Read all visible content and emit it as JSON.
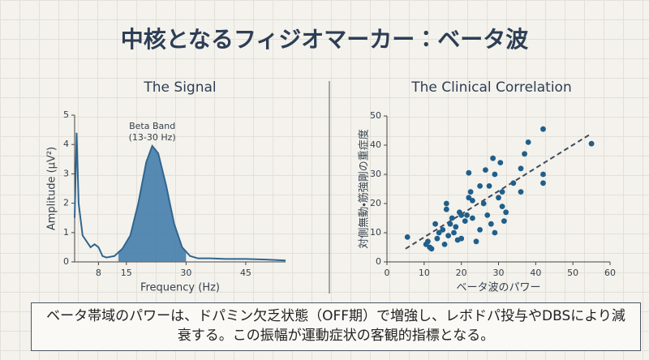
{
  "title": "中核となるフィジオマーカー：ベータ波",
  "caption": "ベータ帯域のパワーは、ドパミン欠乏状態（OFF期）で増強し、レボドパ投与やDBSにより減衰する。この振幅が運動症状の客観的指標となる。",
  "chart_data": [
    {
      "type": "line",
      "title": "The Signal",
      "xlabel": "Frequency (Hz)",
      "ylabel": "Amplitude (μV²)",
      "x": [
        2,
        2.5,
        3,
        4,
        5,
        6,
        7,
        8,
        9,
        10,
        12,
        14,
        16,
        18,
        20,
        21.5,
        23,
        25,
        27,
        29,
        31,
        33,
        36,
        40,
        45,
        50,
        55
      ],
      "y": [
        1.5,
        4.4,
        2.0,
        0.9,
        0.7,
        0.5,
        0.6,
        0.5,
        0.2,
        0.15,
        0.2,
        0.45,
        0.9,
        2.0,
        3.4,
        3.95,
        3.7,
        2.6,
        1.3,
        0.5,
        0.2,
        0.12,
        0.12,
        0.1,
        0.1,
        0.08,
        0.05
      ],
      "color": "#2f6690",
      "band": [
        13,
        30
      ],
      "band_color": "#3b78a8",
      "annotation": [
        "Beta Band",
        "(13-30 Hz)"
      ],
      "xlim": [
        2,
        55
      ],
      "xticks": [
        8,
        15,
        30,
        45
      ],
      "ylim": [
        0,
        5
      ],
      "yticks": [
        0,
        1,
        2,
        3,
        4,
        5
      ]
    },
    {
      "type": "scatter",
      "title": "The Clinical Correlation",
      "xlabel": "ベータ波のパワー",
      "ylabel": "対側無動・筋強剛の重症度",
      "x": [
        5.5,
        10.5,
        11,
        11.5,
        12,
        13,
        13.5,
        14,
        15,
        15.5,
        16,
        16,
        16.5,
        17,
        17.5,
        18,
        18.5,
        19,
        19.5,
        20,
        20,
        21,
        21.5,
        22,
        22,
        22.5,
        23,
        23,
        24,
        25,
        25,
        26,
        26.5,
        27,
        27.5,
        28,
        28.5,
        29,
        29,
        30,
        30.5,
        31,
        31,
        31.5,
        32,
        34,
        36,
        36,
        37,
        38,
        42,
        42,
        42,
        55
      ],
      "y": [
        8.5,
        6,
        7,
        5,
        4.5,
        13,
        8,
        10,
        11,
        6,
        18,
        20,
        9,
        13,
        15,
        10,
        12,
        7.5,
        17,
        16,
        8,
        14,
        16,
        22,
        30.5,
        24,
        15,
        21,
        7,
        26,
        11,
        20,
        31.5,
        16,
        26,
        13,
        35.5,
        30,
        10,
        22,
        34,
        24,
        19,
        14,
        17,
        27,
        24,
        32,
        37,
        41,
        45.5,
        30,
        27,
        40.5
      ],
      "color": "#1f5f8b",
      "trendline": {
        "x": [
          5,
          55
        ],
        "y": [
          4.5,
          44
        ]
      },
      "trendline_color": "#3d4a5c",
      "xlim": [
        0,
        60
      ],
      "xticks": [
        0,
        10,
        20,
        30,
        40,
        50,
        60
      ],
      "ylim": [
        0,
        50
      ],
      "yticks": [
        0,
        10,
        20,
        30,
        40,
        50
      ]
    }
  ]
}
